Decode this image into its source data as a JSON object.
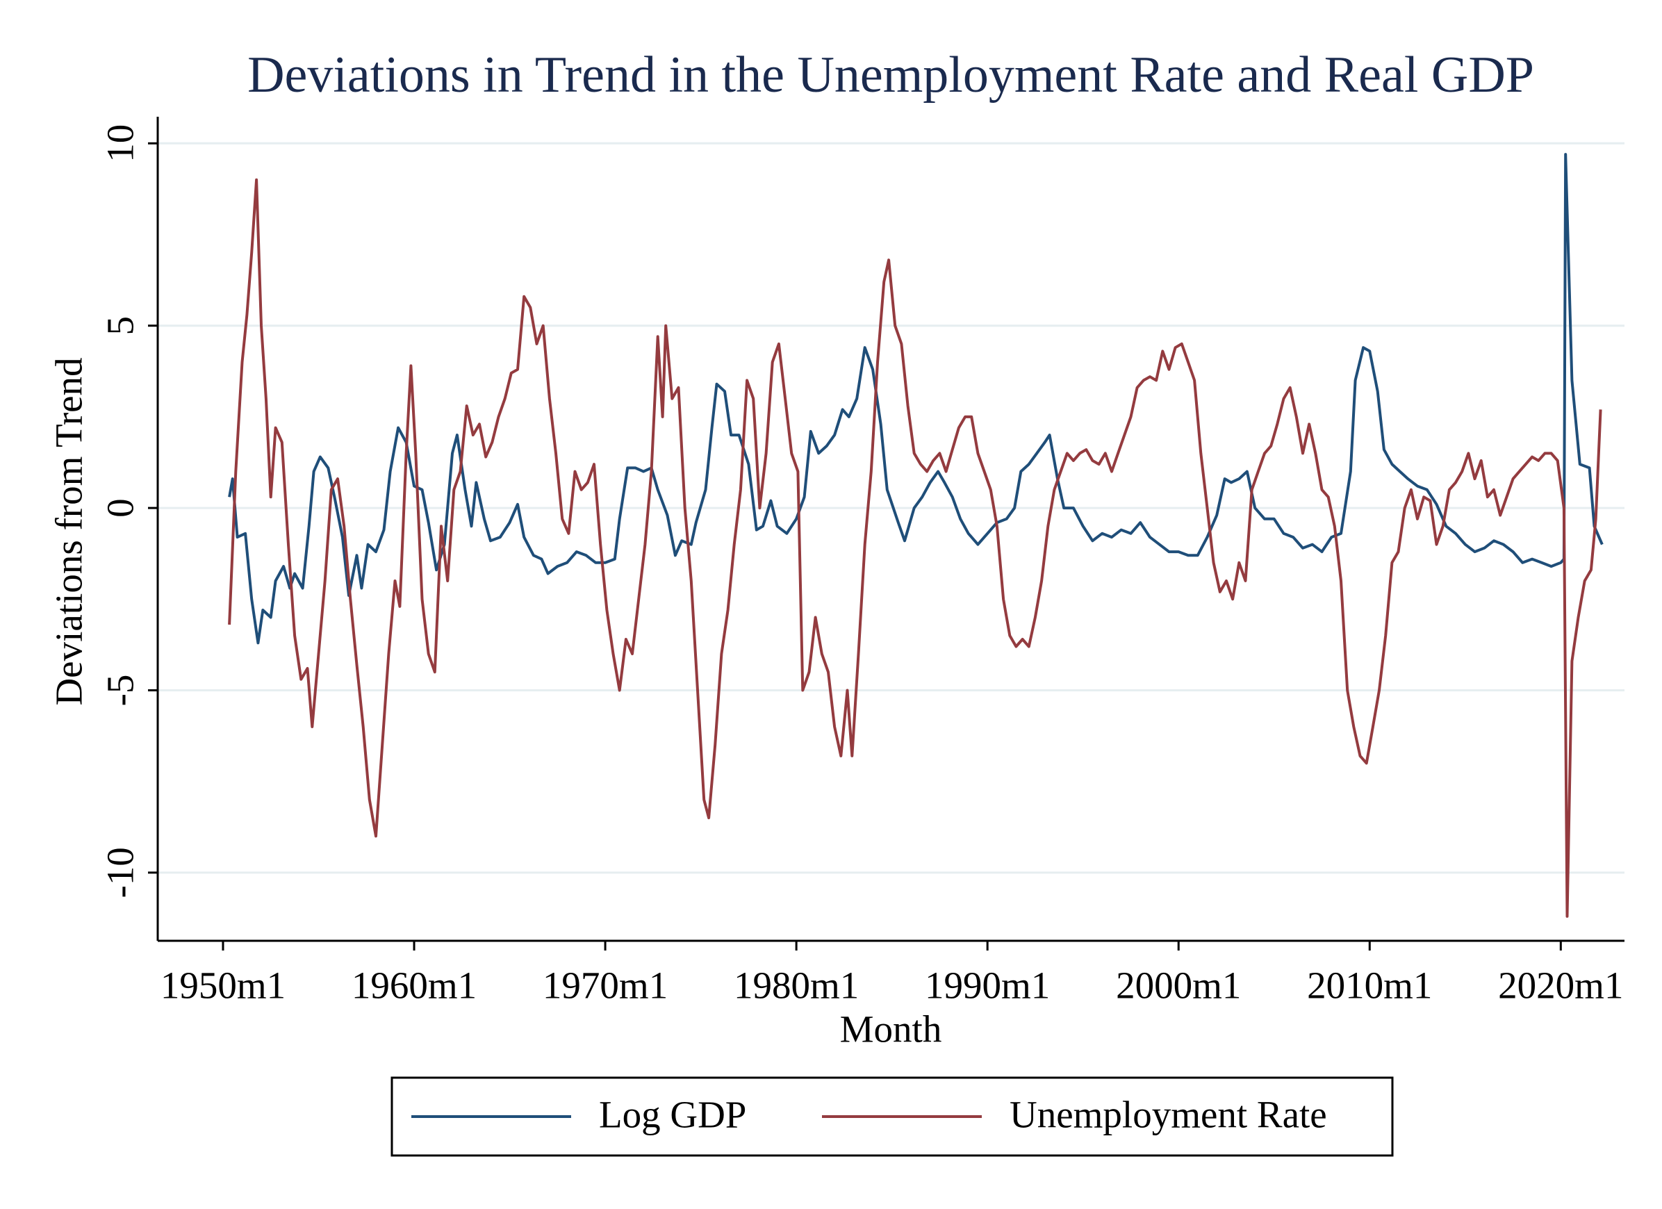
{
  "chart_data": {
    "type": "line",
    "title": "Deviations in Trend in the Unemployment Rate and Real GDP",
    "x_label": "Month",
    "y_label": "Deviations from Trend",
    "xlim": [
      "1946m8",
      "2023m5"
    ],
    "xticks": [
      "1950m1",
      "1960m1",
      "1970m1",
      "1980m1",
      "1990m1",
      "2000m1",
      "2010m1",
      "2020m1"
    ],
    "ylim": [
      -11.87,
      10.73
    ],
    "yticks": [
      -10,
      -5,
      0,
      5,
      10
    ],
    "grid": true,
    "legend": "bottom",
    "series": [
      {
        "name": "Log GDP",
        "color": "#1f4e79",
        "x": [
          "1950m5",
          "1950m7",
          "1950m10",
          "1951m3",
          "1951m7",
          "1951m11",
          "1952m2",
          "1952m7",
          "1952m10",
          "1953m3",
          "1953m7",
          "1953m10",
          "1954m3",
          "1954m7",
          "1954m10",
          "1955m2",
          "1955m7",
          "1955m11",
          "1956m4",
          "1956m8",
          "1957m1",
          "1957m4",
          "1957m8",
          "1958m1",
          "1958m6",
          "1958m10",
          "1959m3",
          "1959m8",
          "1960m1",
          "1960m6",
          "1960m10",
          "1961m3",
          "1961m8",
          "1962m1",
          "1962m4",
          "1962m9",
          "1963m1",
          "1963m4",
          "1963m9",
          "1964m1",
          "1964m7",
          "1965m1",
          "1965m6",
          "1965m10",
          "1966m4",
          "1966m9",
          "1967m1",
          "1967m7",
          "1968m1",
          "1968m7",
          "1969m1",
          "1969m7",
          "1970m1",
          "1970m7",
          "1970m10",
          "1971m3",
          "1971m8",
          "1972m1",
          "1972m6",
          "1972m10",
          "1973m4",
          "1973m9",
          "1974m1",
          "1974m7",
          "1974m10",
          "1975m4",
          "1975m8",
          "1975m11",
          "1976m4",
          "1976m8",
          "1977m1",
          "1977m7",
          "1977m12",
          "1978m4",
          "1978m9",
          "1979m1",
          "1979m7",
          "1980m1",
          "1980m6",
          "1980m10",
          "1981m3",
          "1981m8",
          "1982m1",
          "1982m6",
          "1982m10",
          "1983m3",
          "1983m8",
          "1984m1",
          "1984m6",
          "1984m10",
          "1985m5",
          "1985m9",
          "1986m3",
          "1986m8",
          "1987m1",
          "1987m6",
          "1987m10",
          "1988m3",
          "1988m8",
          "1989m1",
          "1989m7",
          "1990m1",
          "1990m7",
          "1991m1",
          "1991m6",
          "1991m10",
          "1992m3",
          "1992m8",
          "1993m1",
          "1993m4",
          "1993m9",
          "1994m1",
          "1994m7",
          "1995m1",
          "1995m7",
          "1996m1",
          "1996m7",
          "1997m1",
          "1997m7",
          "1998m1",
          "1998m7",
          "1999m1",
          "1999m7",
          "2000m1",
          "2000m7",
          "2001m1",
          "2001m7",
          "2002m1",
          "2002m6",
          "2002m10",
          "2003m3",
          "2003m8",
          "2004m1",
          "2004m7",
          "2005m1",
          "2005m7",
          "2006m1",
          "2006m7",
          "2007m1",
          "2007m7",
          "2008m1",
          "2008m7",
          "2009m1",
          "2009m4",
          "2009m9",
          "2010m1",
          "2010m6",
          "2010m10",
          "2011m3",
          "2011m8",
          "2012m1",
          "2012m7",
          "2013m1",
          "2013m7",
          "2014m1",
          "2014m7",
          "2015m1",
          "2015m7",
          "2016m1",
          "2016m7",
          "2017m1",
          "2017m7",
          "2018m1",
          "2018m7",
          "2019m1",
          "2019m7",
          "2020m1",
          "2020m3",
          "2020m4",
          "2020m8",
          "2021m1",
          "2021m7",
          "2021m10",
          "2022m3"
        ],
        "values": [
          0.3,
          0.8,
          -0.8,
          -0.7,
          -2.5,
          -3.7,
          -2.8,
          -3.0,
          -2.0,
          -1.6,
          -2.2,
          -1.8,
          -2.2,
          -0.5,
          1.0,
          1.4,
          1.1,
          0.3,
          -0.8,
          -2.4,
          -1.3,
          -2.2,
          -1.0,
          -1.2,
          -0.6,
          1.0,
          2.2,
          1.8,
          0.6,
          0.5,
          -0.4,
          -1.7,
          -1.0,
          1.5,
          2.0,
          0.5,
          -0.5,
          0.7,
          -0.3,
          -0.9,
          -0.8,
          -0.4,
          0.1,
          -0.8,
          -1.3,
          -1.4,
          -1.8,
          -1.6,
          -1.5,
          -1.2,
          -1.3,
          -1.5,
          -1.5,
          -1.4,
          -0.3,
          1.1,
          1.1,
          1.0,
          1.1,
          0.5,
          -0.2,
          -1.3,
          -0.9,
          -1.0,
          -0.4,
          0.5,
          2.2,
          3.4,
          3.2,
          2.0,
          2.0,
          1.2,
          -0.6,
          -0.5,
          0.2,
          -0.5,
          -0.7,
          -0.3,
          0.3,
          2.1,
          1.5,
          1.7,
          2.0,
          2.7,
          2.5,
          3.0,
          4.4,
          3.8,
          2.3,
          0.5,
          -0.4,
          -0.9,
          0.0,
          0.3,
          0.7,
          1.0,
          0.7,
          0.3,
          -0.3,
          -0.7,
          -1.0,
          -0.7,
          -0.4,
          -0.3,
          0.0,
          1.0,
          1.2,
          1.5,
          1.8,
          2.0,
          0.8,
          0.0,
          0.0,
          -0.5,
          -0.9,
          -0.7,
          -0.8,
          -0.6,
          -0.7,
          -0.4,
          -0.8,
          -1.0,
          -1.2,
          -1.2,
          -1.3,
          -1.3,
          -0.8,
          -0.2,
          0.8,
          0.7,
          0.8,
          1.0,
          0.0,
          -0.3,
          -0.3,
          -0.7,
          -0.8,
          -1.1,
          -1.0,
          -1.2,
          -0.8,
          -0.7,
          1.0,
          3.5,
          4.4,
          4.3,
          3.2,
          1.6,
          1.2,
          1.0,
          0.8,
          0.6,
          0.5,
          0.1,
          -0.5,
          -0.7,
          -1.0,
          -1.2,
          -1.1,
          -0.9,
          -1.0,
          -1.2,
          -1.5,
          -1.4,
          -1.5,
          -1.6,
          -1.5,
          -1.4,
          9.7,
          3.5,
          1.2,
          1.1,
          -0.5,
          -1.0
        ]
      },
      {
        "name": "Unemployment Rate",
        "color": "#943b3f",
        "x": [
          "1950m5",
          "1950m9",
          "1951m1",
          "1951m4",
          "1951m7",
          "1951m10",
          "1952m1",
          "1952m4",
          "1952m7",
          "1952m10",
          "1953m2",
          "1953m6",
          "1953m10",
          "1954m2",
          "1954m6",
          "1954m9",
          "1955m1",
          "1955m5",
          "1955m9",
          "1956m1",
          "1956m5",
          "1956m9",
          "1957m1",
          "1957m5",
          "1957m9",
          "1958m1",
          "1958m5",
          "1958m9",
          "1959m1",
          "1959m4",
          "1959m8",
          "1959m11",
          "1960m2",
          "1960m6",
          "1960m10",
          "1961m2",
          "1961m6",
          "1961m10",
          "1962m2",
          "1962m6",
          "1962m10",
          "1963m2",
          "1963m6",
          "1963m10",
          "1964m2",
          "1964m6",
          "1964m10",
          "1965m2",
          "1965m6",
          "1965m10",
          "1966m2",
          "1966m6",
          "1966m10",
          "1967m2",
          "1967m6",
          "1967m10",
          "1968m2",
          "1968m6",
          "1968m10",
          "1969m2",
          "1969m6",
          "1969m10",
          "1970m2",
          "1970m6",
          "1970m10",
          "1971m2",
          "1971m6",
          "1971m10",
          "1972m2",
          "1972m6",
          "1972m10",
          "1973m1",
          "1973m3",
          "1973m7",
          "1973m11",
          "1974m3",
          "1974m7",
          "1974m11",
          "1975m3",
          "1975m6",
          "1975m10",
          "1976m2",
          "1976m6",
          "1976m10",
          "1977m2",
          "1977m6",
          "1977m10",
          "1978m2",
          "1978m6",
          "1978m10",
          "1979m2",
          "1979m6",
          "1979m10",
          "1980m2",
          "1980m5",
          "1980m9",
          "1981m1",
          "1981m5",
          "1981m9",
          "1982m1",
          "1982m5",
          "1982m9",
          "1982m12",
          "1983m4",
          "1983m8",
          "1983m12",
          "1984m4",
          "1984m8",
          "1984m11",
          "1985m3",
          "1985m7",
          "1985m11",
          "1986m3",
          "1986m7",
          "1986m11",
          "1987m3",
          "1987m7",
          "1987m11",
          "1988m3",
          "1988m7",
          "1988m11",
          "1989m3",
          "1989m7",
          "1989m11",
          "1990m3",
          "1990m7",
          "1990m11",
          "1991m3",
          "1991m7",
          "1991m11",
          "1992m3",
          "1992m7",
          "1992m11",
          "1993m3",
          "1993m7",
          "1993m11",
          "1994m3",
          "1994m7",
          "1994m11",
          "1995m3",
          "1995m7",
          "1995m11",
          "1996m3",
          "1996m7",
          "1996m11",
          "1997m3",
          "1997m7",
          "1997m11",
          "1998m3",
          "1998m7",
          "1998m11",
          "1999m3",
          "1999m7",
          "1999m11",
          "2000m3",
          "2000m7",
          "2000m11",
          "2001m3",
          "2001m7",
          "2001m11",
          "2002m3",
          "2002m7",
          "2002m11",
          "2003m3",
          "2003m7",
          "2003m11",
          "2004m3",
          "2004m7",
          "2004m11",
          "2005m3",
          "2005m7",
          "2005m11",
          "2006m3",
          "2006m7",
          "2006m11",
          "2007m3",
          "2007m7",
          "2007m11",
          "2008m3",
          "2008m7",
          "2008m11",
          "2009m3",
          "2009m7",
          "2009m11",
          "2010m3",
          "2010m7",
          "2010m11",
          "2011m3",
          "2011m7",
          "2011m11",
          "2012m3",
          "2012m7",
          "2012m11",
          "2013m3",
          "2013m7",
          "2013m11",
          "2014m3",
          "2014m7",
          "2014m11",
          "2015m3",
          "2015m7",
          "2015m11",
          "2016m3",
          "2016m7",
          "2016m11",
          "2017m3",
          "2017m7",
          "2017m11",
          "2018m3",
          "2018m7",
          "2018m11",
          "2019m3",
          "2019m7",
          "2019m11",
          "2020m3",
          "2020m5",
          "2020m8",
          "2020m12",
          "2021m4",
          "2021m8",
          "2021m11",
          "2022m2"
        ],
        "values": [
          -3.2,
          1.0,
          4.0,
          5.3,
          7.0,
          9.0,
          5.0,
          3.0,
          0.3,
          2.2,
          1.8,
          -1.0,
          -3.5,
          -4.7,
          -4.4,
          -6.0,
          -4.0,
          -2.0,
          0.5,
          0.8,
          -0.5,
          -2.5,
          -4.3,
          -6.0,
          -8.0,
          -9.0,
          -6.5,
          -4.0,
          -2.0,
          -2.7,
          1.5,
          3.9,
          1.5,
          -2.5,
          -4.0,
          -4.5,
          -0.5,
          -2.0,
          0.5,
          1.0,
          2.8,
          2.0,
          2.3,
          1.4,
          1.8,
          2.5,
          3.0,
          3.7,
          3.8,
          5.8,
          5.5,
          4.5,
          5.0,
          3.0,
          1.5,
          -0.3,
          -0.7,
          1.0,
          0.5,
          0.7,
          1.2,
          -1.0,
          -2.8,
          -4.0,
          -5.0,
          -3.6,
          -4.0,
          -2.5,
          -1.0,
          1.0,
          4.7,
          2.5,
          5.0,
          3.0,
          3.3,
          0.0,
          -2.0,
          -5.0,
          -8.0,
          -8.5,
          -6.5,
          -4.0,
          -2.8,
          -1.0,
          0.5,
          3.5,
          3.0,
          0.0,
          1.5,
          4.0,
          4.5,
          3.0,
          1.5,
          1.0,
          -5.0,
          -4.5,
          -3.0,
          -4.0,
          -4.5,
          -6.0,
          -6.8,
          -5.0,
          -6.8,
          -4.0,
          -1.0,
          1.0,
          4.0,
          6.2,
          6.8,
          5.0,
          4.5,
          2.8,
          1.5,
          1.2,
          1.0,
          1.3,
          1.5,
          1.0,
          1.6,
          2.2,
          2.5,
          2.5,
          1.5,
          1.0,
          0.5,
          -0.5,
          -2.5,
          -3.5,
          -3.8,
          -3.6,
          -3.8,
          -3.0,
          -2.0,
          -0.5,
          0.5,
          1.0,
          1.5,
          1.3,
          1.5,
          1.6,
          1.3,
          1.2,
          1.5,
          1.0,
          1.5,
          2.0,
          2.5,
          3.3,
          3.5,
          3.6,
          3.5,
          4.3,
          3.8,
          4.4,
          4.5,
          4.0,
          3.5,
          1.5,
          0.0,
          -1.5,
          -2.3,
          -2.0,
          -2.5,
          -1.5,
          -2.0,
          0.5,
          1.0,
          1.5,
          1.7,
          2.3,
          3.0,
          3.3,
          2.5,
          1.5,
          2.3,
          1.5,
          0.5,
          0.3,
          -0.5,
          -2.0,
          -5.0,
          -6.0,
          -6.8,
          -7.0,
          -6.0,
          -5.0,
          -3.5,
          -1.5,
          -1.2,
          0.0,
          0.5,
          -0.3,
          0.3,
          0.2,
          -1.0,
          -0.5,
          0.5,
          0.7,
          1.0,
          1.5,
          0.8,
          1.3,
          0.3,
          0.5,
          -0.2,
          0.3,
          0.8,
          1.0,
          1.2,
          1.4,
          1.3,
          1.5,
          1.5,
          1.3,
          0.0,
          -11.2,
          -4.2,
          -3.0,
          -2.0,
          -1.7,
          -0.3,
          2.7
        ]
      }
    ]
  }
}
